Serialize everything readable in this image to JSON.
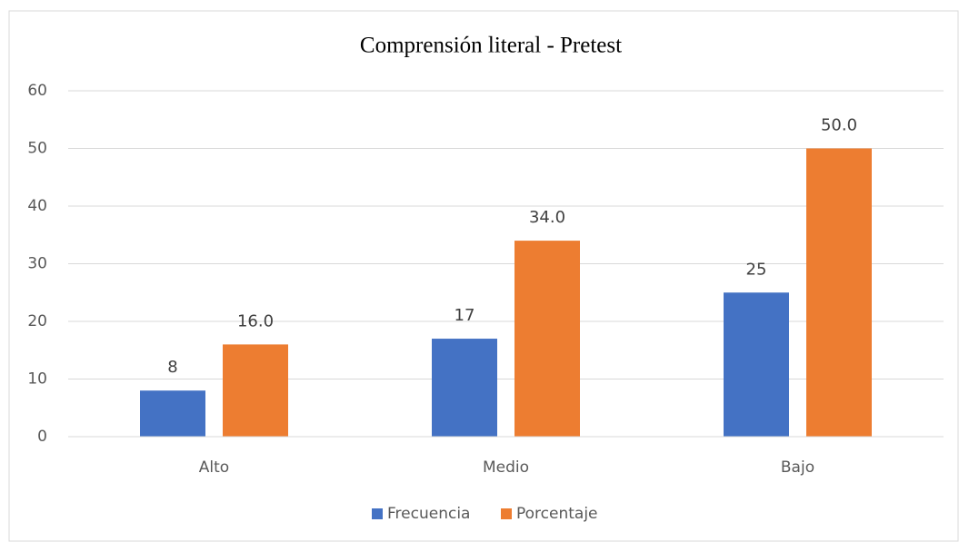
{
  "chart_data": {
    "type": "bar",
    "title": "Comprensión literal - Pretest",
    "categories": [
      "Alto",
      "Medio",
      "Bajo"
    ],
    "series": [
      {
        "name": "Frecuencia",
        "color": "#4472c4",
        "values": [
          8,
          17,
          25
        ]
      },
      {
        "name": "Porcentaje",
        "color": "#ed7d31",
        "values": [
          16,
          34,
          50
        ],
        "value_labels": [
          "16.0",
          "34.0",
          "50.0"
        ]
      }
    ],
    "ylim": [
      0,
      60
    ],
    "yticks": [
      0,
      10,
      20,
      30,
      40,
      50,
      60
    ],
    "grid": true,
    "legend": "bottom"
  }
}
